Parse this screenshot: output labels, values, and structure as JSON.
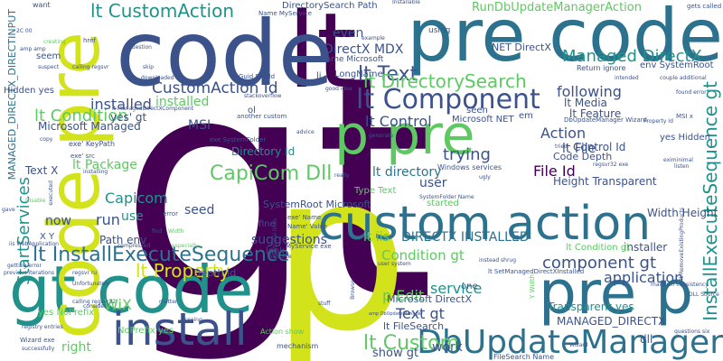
{
  "colors": {
    "background": "#ffffff",
    "palette": [
      "#440154",
      "#3b528b",
      "#21918c",
      "#5ec962",
      "#fde725"
    ]
  },
  "words": [
    {
      "text": "gt",
      "color": "#440154"
    },
    {
      "text": "lt",
      "color": "#440154"
    },
    {
      "text": "p",
      "color": "#d2e21b"
    },
    {
      "text": "code",
      "color": "#3b528b"
    },
    {
      "text": "pre code",
      "color": "#2c728e"
    },
    {
      "text": "gt code",
      "color": "#21918c"
    },
    {
      "text": "p pre",
      "color": "#5ec962"
    },
    {
      "text": "pre p",
      "color": "#2c728e"
    },
    {
      "text": "custom action",
      "color": "#2c728e"
    },
    {
      "text": "install",
      "color": "#3b528b"
    },
    {
      "text": "DbUpdateManager",
      "color": "#2c728e"
    },
    {
      "text": "code pre",
      "color": "#d2e21b"
    },
    {
      "text": "lt Component",
      "color": "#3b528b"
    },
    {
      "text": "lt InstallExecuteSequence",
      "color": "#2c728e"
    },
    {
      "text": "lt CustomAction",
      "color": "#21918c"
    },
    {
      "text": "lt Text",
      "color": "#3b528b"
    },
    {
      "text": "CustomAction Id",
      "color": "#3b528b"
    },
    {
      "text": "lt DirectorySearch",
      "color": "#5ec962"
    },
    {
      "text": "InstallExecuteSequence gt",
      "color": "#21918c"
    },
    {
      "text": "lt Custom",
      "color": "#5ec962"
    },
    {
      "text": "component gt",
      "color": "#3b528b"
    },
    {
      "text": "lt Condition",
      "color": "#5ec962"
    },
    {
      "text": "Managed DirectX",
      "color": "#21918c"
    },
    {
      "text": "CapiCom Dll",
      "color": "#5ec962"
    },
    {
      "text": "lt Property",
      "color": "#d2e21b"
    },
    {
      "text": "StartServices",
      "color": "#21918c"
    },
    {
      "text": "RunDbUpdateManagerAction",
      "color": "#5ec962"
    },
    {
      "text": "DirectX MDX",
      "color": "#3b528b"
    },
    {
      "text": "trying",
      "color": "#3b528b"
    },
    {
      "text": "Action",
      "color": "#3b528b"
    },
    {
      "text": "lt Control",
      "color": "#3b528b"
    },
    {
      "text": "application",
      "color": "#3b528b"
    },
    {
      "text": "run",
      "color": "#3b528b"
    },
    {
      "text": "lt File",
      "color": "#3b528b"
    },
    {
      "text": "File Id",
      "color": "#440154"
    },
    {
      "text": "Text gt",
      "color": "#3b528b"
    },
    {
      "text": "p Edit",
      "color": "#5ec962"
    },
    {
      "text": "service",
      "color": "#21918c"
    },
    {
      "text": "Condition gt",
      "color": "#5ec962"
    },
    {
      "text": "installed",
      "color": "#3b528b"
    },
    {
      "text": "following",
      "color": "#3b528b"
    },
    {
      "text": "Capicom",
      "color": "#21918c"
    },
    {
      "text": "lt Package",
      "color": "#5ec962"
    },
    {
      "text": "WiX",
      "color": "#5ec962"
    },
    {
      "text": "Transparent yes",
      "color": "#21918c"
    },
    {
      "text": "DIRECTX INSTALLED",
      "color": "#2c728e"
    },
    {
      "text": "lt iis",
      "color": "#5ec962"
    },
    {
      "text": "lt directory",
      "color": "#2c728e"
    },
    {
      "text": "seed",
      "color": "#3b528b"
    },
    {
      "text": "suggestions",
      "color": "#3b528b"
    },
    {
      "text": "MSI",
      "color": "#3b528b"
    },
    {
      "text": "user",
      "color": "#3b528b"
    },
    {
      "text": "work",
      "color": "#3b528b"
    },
    {
      "text": "right",
      "color": "#5ec962"
    },
    {
      "text": "now",
      "color": "#3b528b"
    },
    {
      "text": "use",
      "color": "#21918c"
    },
    {
      "text": "MANAGED_DIRECTX",
      "color": "#3b528b"
    },
    {
      "text": "Microsoft Managed",
      "color": "#3b528b"
    },
    {
      "text": "lt Media",
      "color": "#3b528b"
    },
    {
      "text": "lt Feature",
      "color": "#3b528b"
    },
    {
      "text": "Control Id",
      "color": "#3b528b"
    },
    {
      "text": "Code Depth",
      "color": "#3b528b"
    },
    {
      "text": "Height Transparent",
      "color": "#3b528b"
    },
    {
      "text": "Width Height",
      "color": "#3b528b"
    },
    {
      "text": "installer",
      "color": "#3b528b"
    },
    {
      "text": "dll",
      "color": "#3b528b"
    },
    {
      "text": "even",
      "color": "#3b528b"
    },
    {
      "text": "installed",
      "color": "#5ec962"
    },
    {
      "text": "yes' gt",
      "color": "#3b528b"
    },
    {
      "text": "Text X",
      "color": "#3b528b"
    },
    {
      "text": "Microsoft DirectX",
      "color": "#3b528b"
    },
    {
      "text": "show gt",
      "color": "#3b528b"
    },
    {
      "text": "Directory Id",
      "color": "#21918c"
    },
    {
      "text": "Path env",
      "color": "#3b528b"
    },
    {
      "text": "Depth Id",
      "color": "#3b528b"
    },
    {
      "text": "lt FileSearch",
      "color": "#3b528b"
    },
    {
      "text": "SystemRoot Microsoft",
      "color": "#3b528b"
    },
    {
      "text": "NET DirectX",
      "color": "#3b528b"
    },
    {
      "text": "Microsoft NET",
      "color": "#3b528b"
    },
    {
      "text": "DirectorySearch Path",
      "color": "#3b528b"
    },
    {
      "text": "LongName",
      "color": "#3b528b"
    },
    {
      "text": "Name Microsoft",
      "color": "#3b528b"
    },
    {
      "text": "env SystemRoot",
      "color": "#3b528b"
    },
    {
      "text": "yes Hidden",
      "color": "#3b528b"
    },
    {
      "text": "NoPrefix yes",
      "color": "#5ec962"
    },
    {
      "text": "yes NoPrefix",
      "color": "#5ec962"
    },
    {
      "text": "MANAGED_DIRECTX_DIRECTINPUT",
      "color": "#2c728e"
    },
    {
      "text": "Hidden yes",
      "color": "#3b528b"
    },
    {
      "text": "Type Text",
      "color": "#5ec962"
    },
    {
      "text": "started",
      "color": "#5ec962"
    },
    {
      "text": "lt Condition gt",
      "color": "#5ec962"
    },
    {
      "text": "X Y",
      "color": "#3b528b"
    },
    {
      "text": "look",
      "color": "#3b528b"
    },
    {
      "text": "fine",
      "color": "#3b528b"
    },
    {
      "text": "one",
      "color": "#3b528b"
    },
    {
      "text": "em",
      "color": "#3b528b"
    },
    {
      "text": "li",
      "color": "#3b528b"
    },
    {
      "text": "ol",
      "color": "#3b528b"
    },
    {
      "text": "seen",
      "color": "#3b528b"
    },
    {
      "text": "using",
      "color": "#3b528b"
    },
    {
      "text": "want",
      "color": "#3b528b"
    },
    {
      "text": "Windows services",
      "color": "#3b528b"
    },
    {
      "text": "another custom",
      "color": "#3b528b"
    },
    {
      "text": "Action show",
      "color": "#5ec962"
    },
    {
      "text": "mechanism",
      "color": "#3b528b"
    },
    {
      "text": "Return ignore",
      "color": "#3b528b"
    },
    {
      "text": "lt SetManagedDirectXInstalled",
      "color": "#3b528b"
    },
    {
      "text": "DbUpdateManager Wizard",
      "color": "#3b528b"
    },
    {
      "text": "SystemFolder Name",
      "color": "#3b528b"
    },
    {
      "text": "FileSearch Name",
      "color": "#3b528b"
    },
    {
      "text": "Guid DiskId",
      "color": "#3b528b"
    },
    {
      "text": "Unfortunately",
      "color": "#3b528b"
    },
    {
      "text": "calling regsvr",
      "color": "#3b528b"
    },
    {
      "text": "gets called",
      "color": "#3b528b"
    },
    {
      "text": "found error",
      "color": "#3b528b"
    },
    {
      "text": "couple additional",
      "color": "#3b528b"
    },
    {
      "text": "maintain consistency",
      "color": "#3b528b"
    },
    {
      "text": "questions six",
      "color": "#3b528b"
    },
    {
      "text": "DLL Source",
      "color": "#3b528b"
    },
    {
      "text": "getting error",
      "color": "#3b528b"
    },
    {
      "text": "previous iterations",
      "color": "#3b528b"
    },
    {
      "text": "registry entries",
      "color": "#3b528b"
    },
    {
      "text": "Wizard exe",
      "color": "#3b528b"
    },
    {
      "text": "successfully",
      "color": "#3b528b"
    },
    {
      "text": "calling regsvr32",
      "color": "#3b528b"
    },
    {
      "text": "consider",
      "color": "#3b528b"
    },
    {
      "text": "matter",
      "color": "#3b528b"
    },
    {
      "text": "seeing",
      "color": "#3b528b"
    },
    {
      "text": "exe' KeyPath",
      "color": "#3b528b"
    },
    {
      "text": "exe' src",
      "color": "#3b528b"
    },
    {
      "text": "exe SystemFolder",
      "color": "#3b528b"
    },
    {
      "text": "additional lines",
      "color": "#3b528b"
    },
    {
      "text": "Web Site",
      "color": "#3b528b"
    },
    {
      "text": "MyService exe",
      "color": "#3b528b"
    },
    {
      "text": "instead shrug",
      "color": "#3b528b"
    },
    {
      "text": "user system",
      "color": "#3b528b"
    },
    {
      "text": "seem",
      "color": "#3b528b"
    },
    {
      "text": "suspect",
      "color": "#3b528b"
    },
    {
      "text": "href",
      "color": "#3b528b"
    },
    {
      "text": "creating",
      "color": "#5ec962"
    },
    {
      "text": "downloaded",
      "color": "#3b528b"
    },
    {
      "text": "stackoverflow",
      "color": "#3b528b"
    },
    {
      "text": "good idea",
      "color": "#3b528b"
    },
    {
      "text": "question",
      "color": "#3b528b"
    },
    {
      "text": "example",
      "color": "#3b528b"
    },
    {
      "text": "Installable",
      "color": "#3b528b"
    },
    {
      "text": "intended",
      "color": "#3b528b"
    },
    {
      "text": "listen",
      "color": "#3b528b"
    },
    {
      "text": "exe' Name",
      "color": "#3b528b"
    },
    {
      "text": "Name' Value",
      "color": "#3b528b"
    },
    {
      "text": "advice",
      "color": "#3b528b"
    },
    {
      "text": "generate",
      "color": "#3b528b"
    },
    {
      "text": "tried",
      "color": "#3b528b"
    },
    {
      "text": "eximinimal",
      "color": "#3b528b"
    },
    {
      "text": "Y Width",
      "color": "#5ec962"
    },
    {
      "text": "Property Id",
      "color": "#3b528b"
    },
    {
      "text": "lt RemoveExistingProducts",
      "color": "#3b528b"
    },
    {
      "text": "Name MyService",
      "color": "#3b528b"
    },
    {
      "text": "amp DbUpdateManager",
      "color": "#3b528b"
    },
    {
      "text": "Disable",
      "color": "#5ec962"
    },
    {
      "text": "Width",
      "color": "#5ec962"
    },
    {
      "text": "gave",
      "color": "#3b528b"
    },
    {
      "text": "find",
      "color": "#3b528b"
    },
    {
      "text": "copy",
      "color": "#3b528b"
    },
    {
      "text": "really",
      "color": "#3b528b"
    },
    {
      "text": "stuff",
      "color": "#3b528b"
    },
    {
      "text": "skip",
      "color": "#3b528b"
    },
    {
      "text": "ugly",
      "color": "#3b528b"
    },
    {
      "text": "error",
      "color": "#3b528b"
    },
    {
      "text": "executed",
      "color": "#3b528b"
    },
    {
      "text": "installing",
      "color": "#3b528b"
    },
    {
      "text": "compressed",
      "color": "#3b528b"
    },
    {
      "text": "especially",
      "color": "#5ec962"
    },
    {
      "text": "lt ManagedDirectXComponent",
      "color": "#3b528b"
    },
    {
      "text": "regsvr32 exe",
      "color": "#3b528b"
    },
    {
      "text": "Browse",
      "color": "#3b528b"
    },
    {
      "text": "Wizard",
      "color": "#3b528b"
    },
    {
      "text": "iis WebApplication",
      "color": "#3b528b"
    },
    {
      "text": "regsvr ru",
      "color": "#3b528b"
    },
    {
      "text": "2C 00",
      "color": "#3b528b"
    },
    {
      "text": "amp amp",
      "color": "#3b528b"
    },
    {
      "text": "MSI x",
      "color": "#3b528b"
    }
  ]
}
